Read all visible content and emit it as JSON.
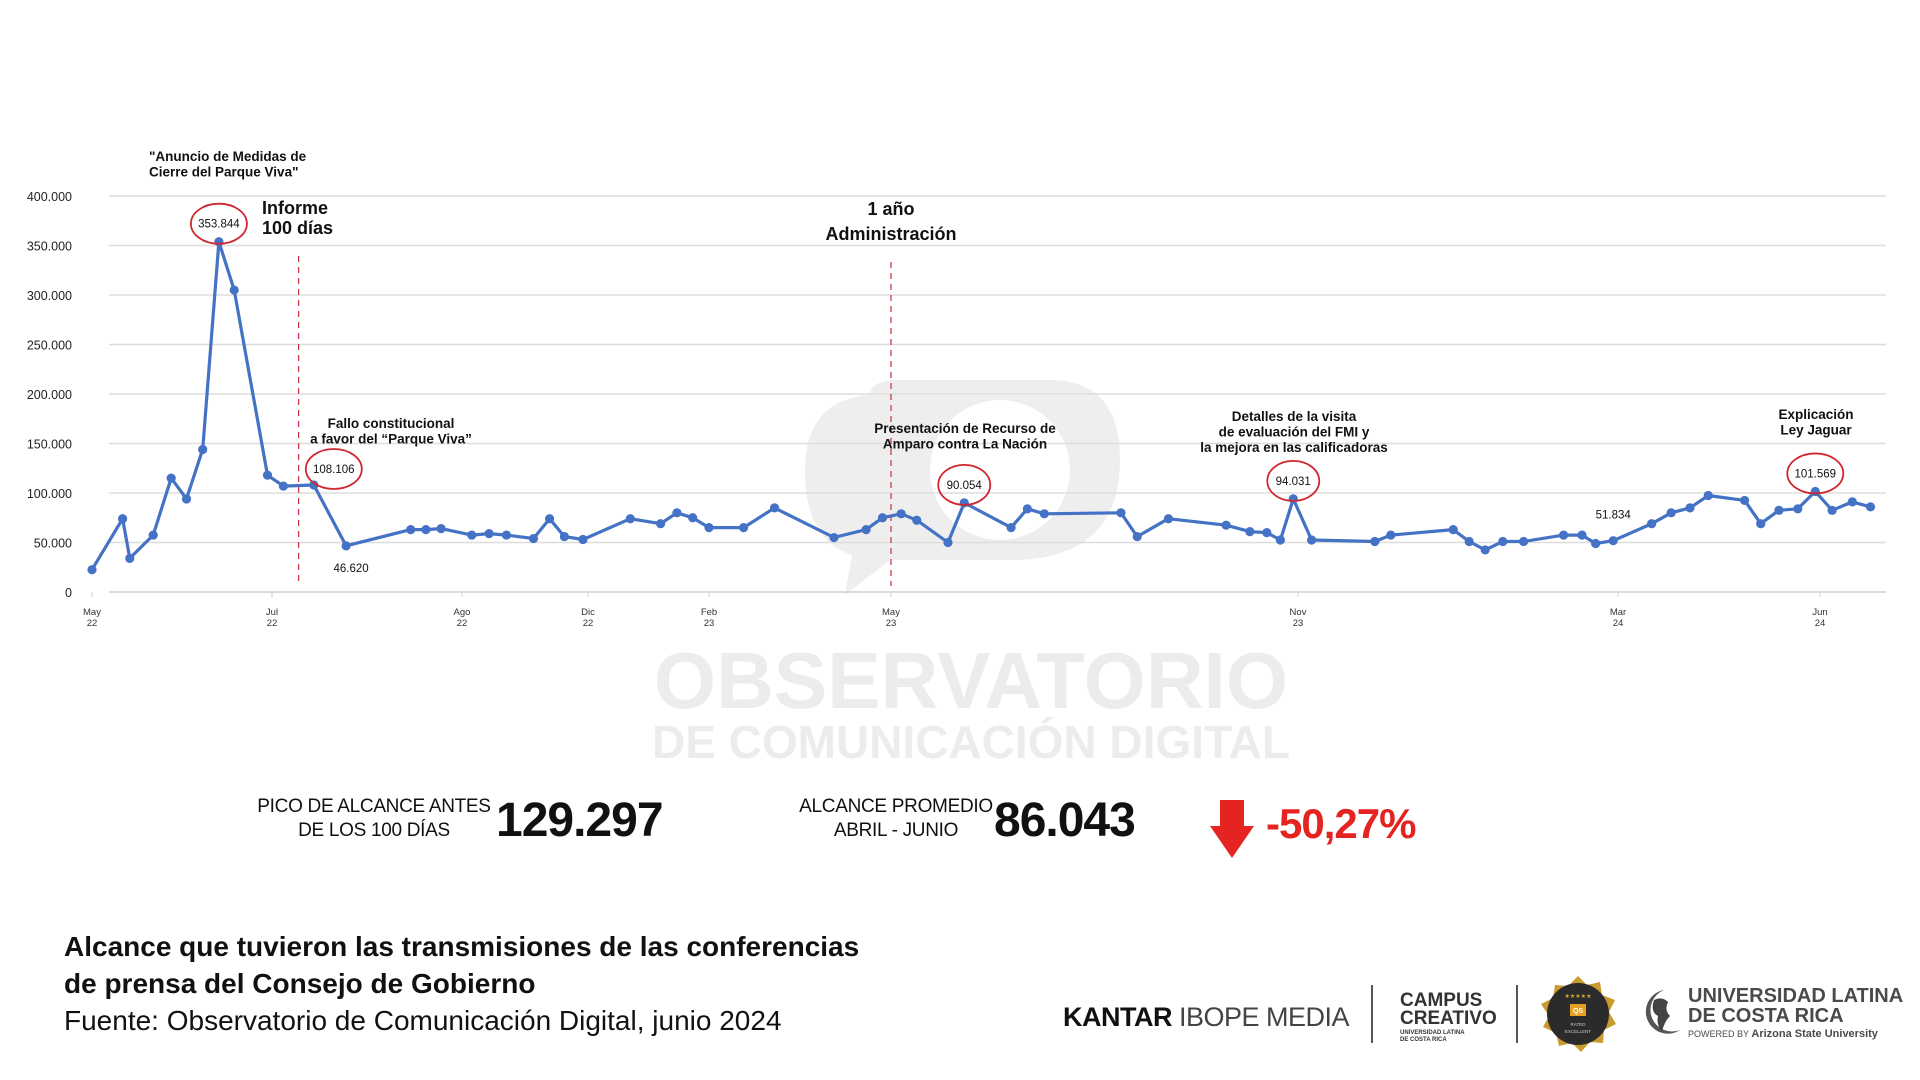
{
  "chart_data": {
    "type": "line",
    "title": "Alcance que tuvieron las transmisiones de las conferencias de prensa del Consejo de Gobierno",
    "ylabel": "",
    "xlabel": "",
    "ylim": [
      0,
      400000
    ],
    "y_ticks": [
      0,
      50000,
      100000,
      150000,
      200000,
      250000,
      300000,
      350000,
      400000
    ],
    "y_tick_labels": [
      "0",
      "50.000",
      "100.000",
      "150.000",
      "200.000",
      "250.000",
      "300.000",
      "350.000",
      "400.000"
    ],
    "x_unit": "months since May 2022",
    "x_ticks": [
      {
        "x": 0,
        "month": "May",
        "year": "22"
      },
      {
        "x": 2,
        "month": "Jul",
        "year": "22"
      },
      {
        "x": 3,
        "month": "Ago",
        "year": "22"
      },
      {
        "x": 7,
        "month": "Dic",
        "year": "22"
      },
      {
        "x": 9,
        "month": "Feb",
        "year": "23"
      },
      {
        "x": 12,
        "month": "May",
        "year": "23"
      },
      {
        "x": 18,
        "month": "Nov",
        "year": "23"
      },
      {
        "x": 22,
        "month": "Mar",
        "year": "24"
      },
      {
        "x": 25,
        "month": "Jun",
        "year": "24"
      }
    ],
    "grid": true,
    "series": [
      {
        "name": "Alcance",
        "color": "#4472c4",
        "x": [
          0,
          0.34,
          0.42,
          0.68,
          0.88,
          1.05,
          1.23,
          1.41,
          1.58,
          1.95,
          2.06,
          2.22,
          2.39,
          2.73,
          2.81,
          2.89,
          3.31,
          3.86,
          4.41,
          5.27,
          5.78,
          6.25,
          6.84,
          7.7,
          8.2,
          8.47,
          8.73,
          9.0,
          9.57,
          10.08,
          11.06,
          11.59,
          11.86,
          12.15,
          12.38,
          12.84,
          13.08,
          13.77,
          14.01,
          14.26,
          15.39,
          15.63,
          16.09,
          16.94,
          17.29,
          17.54,
          17.74,
          17.93,
          18.17,
          18.96,
          19.16,
          19.94,
          20.14,
          20.34,
          20.56,
          20.82,
          21.32,
          21.55,
          21.72,
          21.94,
          22.5,
          22.79,
          23.07,
          23.34,
          23.88,
          24.12,
          24.39,
          24.67,
          24.93,
          25.18,
          25.48,
          25.75
        ],
        "values": [
          22500,
          74000,
          34000,
          57500,
          115000,
          94000,
          144000,
          353844,
          305000,
          118000,
          107000,
          108106,
          46620,
          63000,
          63000,
          64000,
          57500,
          59000,
          57500,
          54000,
          74000,
          56000,
          53000,
          74000,
          69000,
          80000,
          75000,
          65000,
          65000,
          85000,
          55000,
          63000,
          75000,
          79000,
          72500,
          50000,
          90054,
          65000,
          84000,
          79000,
          80000,
          56000,
          74000,
          67500,
          61000,
          60000,
          52500,
          94031,
          52500,
          51000,
          57500,
          63000,
          51000,
          42500,
          51000,
          51000,
          57500,
          57500,
          49000,
          51834,
          69000,
          80000,
          85000,
          97500,
          92500,
          69000,
          82500,
          84000,
          101569,
          82500,
          91000,
          86000
        ]
      }
    ],
    "data_labels": [
      {
        "index": 7,
        "text": "353.844",
        "circled": true
      },
      {
        "index": 11,
        "text": "108.106",
        "circled": true
      },
      {
        "index": 12,
        "text": "46.620",
        "circled": false
      },
      {
        "index": 36,
        "text": "90.054",
        "circled": true
      },
      {
        "index": 47,
        "text": "94.031",
        "circled": true
      },
      {
        "index": 59,
        "text": "51.834",
        "circled": false
      },
      {
        "index": 68,
        "text": "101.569",
        "circled": true
      }
    ],
    "vertical_markers": [
      {
        "x": 2.14,
        "lines": [
          "Informe",
          "100 días"
        ]
      },
      {
        "x": 12,
        "lines": [
          "1 año",
          "Administración"
        ]
      }
    ],
    "annotations": [
      {
        "lines": [
          "\"Anuncio de Medidas de",
          "Cierre del Parque Viva\""
        ]
      },
      {
        "lines": [
          "Fallo constitucional",
          "a favor del “Parque Viva”"
        ]
      },
      {
        "lines": [
          "Presentación de Recurso de",
          "Amparo contra La Nación"
        ]
      },
      {
        "lines": [
          "Detalles de la visita",
          "de evaluación del FMI y",
          "la mejora en las calificadoras"
        ]
      },
      {
        "lines": [
          "Explicación",
          "Ley Jaguar"
        ]
      }
    ]
  },
  "watermark": {
    "line1": "OBSERVATORIO",
    "line2": "DE COMUNICACIÓN DIGITAL"
  },
  "stats": {
    "peak_label_1": "PICO DE ALCANCE ANTES",
    "peak_label_2": "DE LOS 100 DÍAS",
    "peak_value": "129.297",
    "avg_label_1": "ALCANCE PROMEDIO",
    "avg_label_2": "ABRIL - JUNIO",
    "avg_value": "86.043",
    "change_value": "-50,27%",
    "change_icon": "arrow-down-icon",
    "change_color": "#e52421"
  },
  "footer": {
    "title_1": "Alcance que tuvieron las transmisiones de las conferencias",
    "title_2": "de prensa del Consejo de Gobierno",
    "source": "Fuente: Observatorio de Comunicación Digital, junio 2024"
  },
  "logos": {
    "kantar_bold": "KANTAR",
    "kantar_light": "IBOPE MEDIA",
    "campus_1": "CAMPUS",
    "campus_2": "CREATIVO",
    "campus_sub_1": "UNIVERSIDAD LATINA",
    "campus_sub_2": "DE COSTA RICA",
    "badge_stars": "★★★★★",
    "badge_qs": "QS",
    "badge_1": "RATED",
    "badge_2": "EXCELLENT",
    "ulatina_1": "UNIVERSIDAD LATINA",
    "ulatina_2": "DE COSTA RICA",
    "ulatina_powered": "POWERED BY",
    "ulatina_asu": "Arizona State University"
  }
}
